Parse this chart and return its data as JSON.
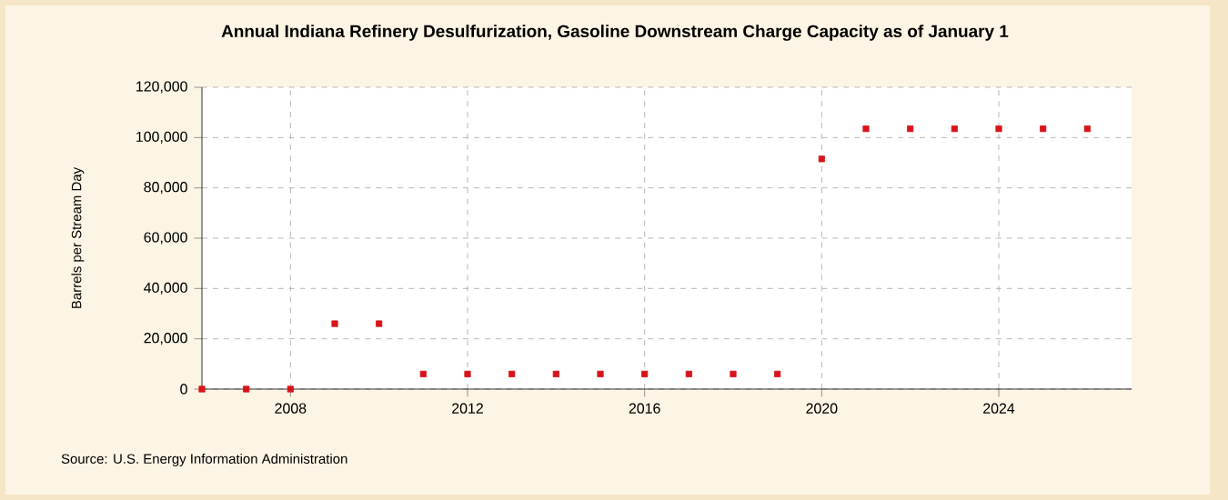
{
  "chart_data": {
    "type": "scatter",
    "title": "Annual Indiana Refinery Desulfurization, Gasoline Downstream Charge Capacity as of January 1",
    "ylabel": "Barrels per Stream Day",
    "x": [
      2006,
      2007,
      2008,
      2009,
      2010,
      2011,
      2012,
      2013,
      2014,
      2015,
      2016,
      2017,
      2018,
      2019,
      2020,
      2021,
      2022,
      2023,
      2024,
      2025,
      2026
    ],
    "series": [
      {
        "color": "#d7141a",
        "values": [
          0,
          0,
          0,
          26000,
          26000,
          6000,
          6000,
          6000,
          6000,
          6000,
          6000,
          6000,
          6000,
          6000,
          91500,
          103500,
          103500,
          103500,
          103500,
          103500,
          103500
        ]
      }
    ],
    "xlim": [
      2006,
      2027
    ],
    "ylim": [
      0,
      120000
    ],
    "xticks": [
      2008,
      2012,
      2016,
      2020,
      2024
    ],
    "yticks": [
      {
        "value": 0,
        "label": "0"
      },
      {
        "value": 20000,
        "label": "20,000"
      },
      {
        "value": 40000,
        "label": "40,000"
      },
      {
        "value": 60000,
        "label": "60,000"
      },
      {
        "value": 80000,
        "label": "80,000"
      },
      {
        "value": 100000,
        "label": "100,000"
      },
      {
        "value": 120000,
        "label": "120,000"
      }
    ],
    "grid": true,
    "marker": "square",
    "annotations": [
      "Source: U.S. Energy Information Administration"
    ]
  }
}
